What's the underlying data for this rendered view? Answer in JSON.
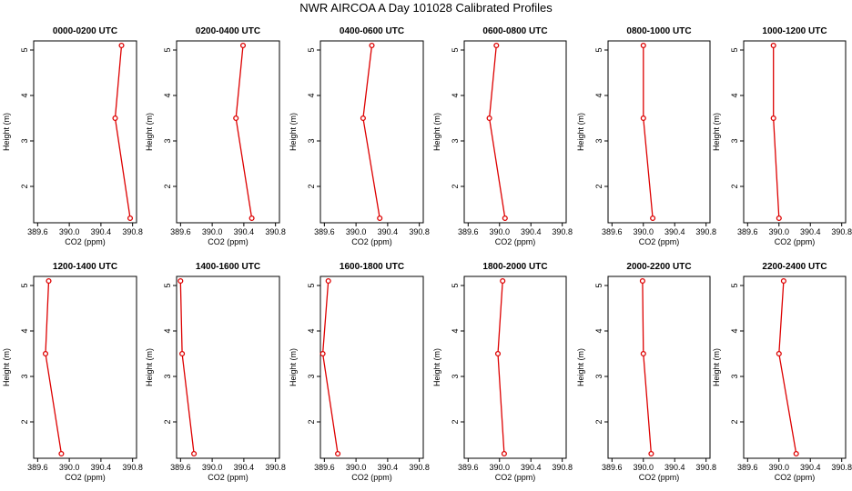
{
  "figure": {
    "title": "NWR AIRCOA A  Day 101028  Calibrated Profiles"
  },
  "colors": {
    "series": "#dd0000",
    "axes": "#000000",
    "background": "#ffffff"
  },
  "chart_data": [
    {
      "type": "line",
      "title": "0000-0200 UTC",
      "xlabel": "CO2 (ppm)",
      "ylabel": "Height (m)",
      "xlim": [
        389.55,
        390.85
      ],
      "ylim": [
        1.2,
        5.2
      ],
      "xticks": [
        "389.6",
        "390.0",
        "390.4",
        "390.8"
      ],
      "yticks": [
        "2",
        "3",
        "4",
        "5"
      ],
      "grid": false,
      "series": [
        {
          "x": [
            390.77,
            390.58,
            390.66
          ],
          "y": [
            1.3,
            3.5,
            5.1
          ]
        }
      ]
    },
    {
      "type": "line",
      "title": "0200-0400 UTC",
      "xlabel": "CO2 (ppm)",
      "ylabel": "Height (m)",
      "xlim": [
        389.55,
        390.85
      ],
      "ylim": [
        1.2,
        5.2
      ],
      "xticks": [
        "389.6",
        "390.0",
        "390.4",
        "390.8"
      ],
      "yticks": [
        "2",
        "3",
        "4",
        "5"
      ],
      "grid": false,
      "series": [
        {
          "x": [
            390.5,
            390.3,
            390.39
          ],
          "y": [
            1.3,
            3.5,
            5.1
          ]
        }
      ]
    },
    {
      "type": "line",
      "title": "0400-0600 UTC",
      "xlabel": "CO2 (ppm)",
      "ylabel": "Height (m)",
      "xlim": [
        389.55,
        390.85
      ],
      "ylim": [
        1.2,
        5.2
      ],
      "xticks": [
        "389.6",
        "390.0",
        "390.4",
        "390.8"
      ],
      "yticks": [
        "2",
        "3",
        "4",
        "5"
      ],
      "grid": false,
      "series": [
        {
          "x": [
            390.3,
            390.09,
            390.2
          ],
          "y": [
            1.3,
            3.5,
            5.1
          ]
        }
      ]
    },
    {
      "type": "line",
      "title": "0600-0800 UTC",
      "xlabel": "CO2 (ppm)",
      "ylabel": "Height (m)",
      "xlim": [
        389.55,
        390.85
      ],
      "ylim": [
        1.2,
        5.2
      ],
      "xticks": [
        "389.6",
        "390.0",
        "390.4",
        "390.8"
      ],
      "yticks": [
        "2",
        "3",
        "4",
        "5"
      ],
      "grid": false,
      "series": [
        {
          "x": [
            390.07,
            389.87,
            389.96
          ],
          "y": [
            1.3,
            3.5,
            5.1
          ]
        }
      ]
    },
    {
      "type": "line",
      "title": "0800-1000 UTC",
      "xlabel": "CO2 (ppm)",
      "ylabel": "Height (m)",
      "xlim": [
        389.55,
        390.85
      ],
      "ylim": [
        1.2,
        5.2
      ],
      "xticks": [
        "389.6",
        "390.0",
        "390.4",
        "390.8"
      ],
      "yticks": [
        "2",
        "3",
        "4",
        "5"
      ],
      "grid": false,
      "series": [
        {
          "x": [
            390.12,
            390.0,
            390.0
          ],
          "y": [
            1.3,
            3.5,
            5.1
          ]
        }
      ]
    },
    {
      "type": "line",
      "title": "1000-1200 UTC",
      "xlabel": "CO2 (ppm)",
      "ylabel": "Height (m)",
      "xlim": [
        389.55,
        390.85
      ],
      "ylim": [
        1.2,
        5.2
      ],
      "xticks": [
        "389.6",
        "390.0",
        "390.4",
        "390.8"
      ],
      "yticks": [
        "2",
        "3",
        "4",
        "5"
      ],
      "grid": false,
      "series": [
        {
          "x": [
            390.0,
            389.93,
            389.93
          ],
          "y": [
            1.3,
            3.5,
            5.1
          ]
        }
      ]
    },
    {
      "type": "line",
      "title": "1200-1400 UTC",
      "xlabel": "CO2 (ppm)",
      "ylabel": "Height (m)",
      "xlim": [
        389.55,
        390.85
      ],
      "ylim": [
        1.2,
        5.2
      ],
      "xticks": [
        "389.6",
        "390.0",
        "390.4",
        "390.8"
      ],
      "yticks": [
        "2",
        "3",
        "4",
        "5"
      ],
      "grid": false,
      "series": [
        {
          "x": [
            389.9,
            389.7,
            389.74
          ],
          "y": [
            1.3,
            3.5,
            5.1
          ]
        }
      ]
    },
    {
      "type": "line",
      "title": "1400-1600 UTC",
      "xlabel": "CO2 (ppm)",
      "ylabel": "Height (m)",
      "xlim": [
        389.55,
        390.85
      ],
      "ylim": [
        1.2,
        5.2
      ],
      "xticks": [
        "389.6",
        "390.0",
        "390.4",
        "390.8"
      ],
      "yticks": [
        "2",
        "3",
        "4",
        "5"
      ],
      "grid": false,
      "series": [
        {
          "x": [
            389.77,
            389.62,
            389.6
          ],
          "y": [
            1.3,
            3.5,
            5.1
          ]
        }
      ]
    },
    {
      "type": "line",
      "title": "1600-1800 UTC",
      "xlabel": "CO2 (ppm)",
      "ylabel": "Height (m)",
      "xlim": [
        389.55,
        390.85
      ],
      "ylim": [
        1.2,
        5.2
      ],
      "xticks": [
        "389.6",
        "390.0",
        "390.4",
        "390.8"
      ],
      "yticks": [
        "2",
        "3",
        "4",
        "5"
      ],
      "grid": false,
      "series": [
        {
          "x": [
            389.77,
            389.58,
            389.65
          ],
          "y": [
            1.3,
            3.5,
            5.1
          ]
        }
      ]
    },
    {
      "type": "line",
      "title": "1800-2000 UTC",
      "xlabel": "CO2 (ppm)",
      "ylabel": "Height (m)",
      "xlim": [
        389.55,
        390.85
      ],
      "ylim": [
        1.2,
        5.2
      ],
      "xticks": [
        "389.6",
        "390.0",
        "390.4",
        "390.8"
      ],
      "yticks": [
        "2",
        "3",
        "4",
        "5"
      ],
      "grid": false,
      "series": [
        {
          "x": [
            390.06,
            389.98,
            390.04
          ],
          "y": [
            1.3,
            3.5,
            5.1
          ]
        }
      ]
    },
    {
      "type": "line",
      "title": "2000-2200 UTC",
      "xlabel": "CO2 (ppm)",
      "ylabel": "Height (m)",
      "xlim": [
        389.55,
        390.85
      ],
      "ylim": [
        1.2,
        5.2
      ],
      "xticks": [
        "389.6",
        "390.0",
        "390.4",
        "390.8"
      ],
      "yticks": [
        "2",
        "3",
        "4",
        "5"
      ],
      "grid": false,
      "series": [
        {
          "x": [
            390.1,
            390.0,
            389.99
          ],
          "y": [
            1.3,
            3.5,
            5.1
          ]
        }
      ]
    },
    {
      "type": "line",
      "title": "2200-2400 UTC",
      "xlabel": "CO2 (ppm)",
      "ylabel": "Height (m)",
      "xlim": [
        389.55,
        390.85
      ],
      "ylim": [
        1.2,
        5.2
      ],
      "xticks": [
        "389.6",
        "390.0",
        "390.4",
        "390.8"
      ],
      "yticks": [
        "2",
        "3",
        "4",
        "5"
      ],
      "grid": false,
      "series": [
        {
          "x": [
            390.22,
            390.0,
            390.06
          ],
          "y": [
            1.3,
            3.5,
            5.1
          ]
        }
      ]
    }
  ]
}
